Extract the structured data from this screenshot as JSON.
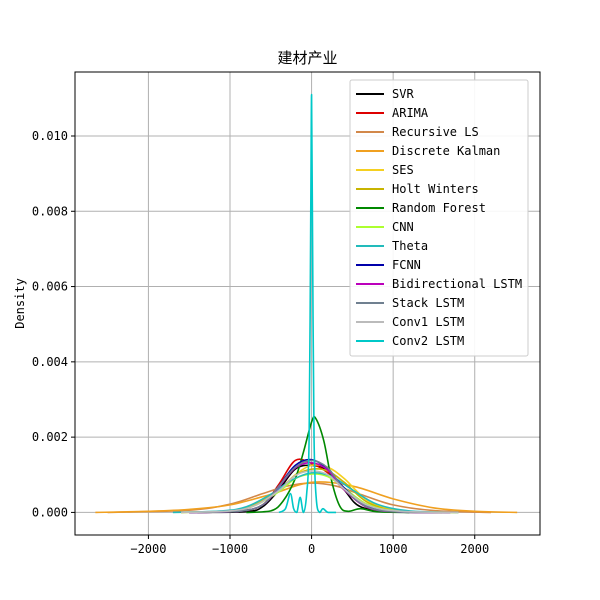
{
  "chart_data": {
    "type": "line",
    "title": "建材产业",
    "xlabel": "",
    "ylabel": "Density",
    "xlim": [
      -2900,
      2800
    ],
    "ylim": [
      -0.0006,
      0.0117
    ],
    "xticks": [
      -2000,
      -1000,
      0,
      1000,
      2000
    ],
    "xtick_labels": [
      "−2000",
      "−1000",
      "0",
      "1000",
      "2000"
    ],
    "yticks": [
      0,
      0.002,
      0.004,
      0.006,
      0.008,
      0.01
    ],
    "ytick_labels": [
      "0.000",
      "0.002",
      "0.004",
      "0.006",
      "0.008",
      "0.010"
    ],
    "grid": true,
    "legend_position": "top-right",
    "series": [
      {
        "name": "SVR",
        "color": "#000000",
        "x": [
          -1400,
          -800,
          -600,
          -400,
          -200,
          0,
          200,
          400,
          600,
          1000,
          1600
        ],
        "y": [
          0,
          2e-05,
          0.00015,
          0.0006,
          0.00115,
          0.00125,
          0.0011,
          0.0006,
          0.00015,
          1e-05,
          0
        ]
      },
      {
        "name": "ARIMA",
        "color": "#dd0000",
        "x": [
          -1500,
          -900,
          -600,
          -400,
          -200,
          0,
          200,
          400,
          700,
          1100,
          1700
        ],
        "y": [
          0,
          3e-05,
          0.0002,
          0.00075,
          0.00138,
          0.0013,
          0.00105,
          0.0006,
          0.00012,
          1e-05,
          0
        ]
      },
      {
        "name": "Recursive LS",
        "color": "#d2884a",
        "x": [
          -2500,
          -1500,
          -1000,
          -600,
          -300,
          0,
          300,
          600,
          1000,
          1500,
          2200
        ],
        "y": [
          0,
          6e-05,
          0.00022,
          0.0005,
          0.0007,
          0.00078,
          0.0007,
          0.00048,
          0.0002,
          5e-05,
          0
        ]
      },
      {
        "name": "Discrete Kalman",
        "color": "#f0a020",
        "x": [
          -2650,
          -2000,
          -1500,
          -1000,
          -500,
          0,
          500,
          1000,
          1500,
          2000,
          2520
        ],
        "y": [
          0,
          3e-05,
          8e-05,
          0.0002,
          0.00048,
          0.0008,
          0.0007,
          0.00036,
          0.00012,
          3e-05,
          0
        ]
      },
      {
        "name": "SES",
        "color": "#f5d020",
        "x": [
          -1600,
          -1000,
          -700,
          -400,
          -200,
          0,
          200,
          400,
          700,
          1100,
          1800
        ],
        "y": [
          0,
          4e-05,
          0.00018,
          0.0006,
          0.001,
          0.00125,
          0.0012,
          0.0009,
          0.0003,
          4e-05,
          0
        ]
      },
      {
        "name": "Holt Winters",
        "color": "#c8b400",
        "x": [
          -1600,
          -1000,
          -700,
          -400,
          -200,
          0,
          200,
          400,
          700,
          1100,
          1800
        ],
        "y": [
          0,
          4e-05,
          0.0002,
          0.0006,
          0.00098,
          0.00115,
          0.0011,
          0.0008,
          0.00025,
          3e-05,
          0
        ]
      },
      {
        "name": "Random Forest",
        "color": "#008800",
        "x": [
          -800,
          -500,
          -350,
          -200,
          -100,
          0,
          50,
          150,
          250,
          350,
          450,
          600,
          800,
          1200
        ],
        "y": [
          0,
          4e-05,
          0.0003,
          0.0009,
          0.0016,
          0.0024,
          0.0025,
          0.0019,
          0.0008,
          0.00015,
          3e-05,
          0.0001,
          2e-05,
          0
        ]
      },
      {
        "name": "CNN",
        "color": "#adff2f",
        "x": [
          -1600,
          -1000,
          -700,
          -400,
          -200,
          0,
          200,
          400,
          700,
          1100,
          1800
        ],
        "y": [
          0,
          4e-05,
          0.00018,
          0.00055,
          0.0009,
          0.00102,
          0.00095,
          0.00065,
          0.0002,
          3e-05,
          0
        ]
      },
      {
        "name": "Theta",
        "color": "#22bbbb",
        "x": [
          -1700,
          -1100,
          -800,
          -500,
          -250,
          0,
          250,
          500,
          800,
          1200,
          1800
        ],
        "y": [
          0,
          4e-05,
          0.00015,
          0.00048,
          0.00085,
          0.00105,
          0.00095,
          0.0006,
          0.00022,
          4e-05,
          0
        ]
      },
      {
        "name": "FCNN",
        "color": "#0000aa",
        "x": [
          -1500,
          -900,
          -600,
          -400,
          -200,
          0,
          200,
          400,
          700,
          1100,
          1700
        ],
        "y": [
          0,
          3e-05,
          0.0002,
          0.0007,
          0.00125,
          0.0014,
          0.00115,
          0.00065,
          0.00015,
          1e-05,
          0
        ]
      },
      {
        "name": "Bidirectional LSTM",
        "color": "#bb00bb",
        "x": [
          -1500,
          -900,
          -600,
          -400,
          -200,
          0,
          200,
          400,
          700,
          1100,
          1700
        ],
        "y": [
          0,
          3e-05,
          0.0002,
          0.00068,
          0.00118,
          0.00132,
          0.00112,
          0.0006,
          0.00012,
          1e-05,
          0
        ]
      },
      {
        "name": "Stack LSTM",
        "color": "#708090",
        "x": [
          -1500,
          -900,
          -600,
          -400,
          -200,
          0,
          200,
          400,
          700,
          1100,
          1700
        ],
        "y": [
          0,
          3e-05,
          0.0002,
          0.0007,
          0.0012,
          0.00138,
          0.00118,
          0.00062,
          0.00013,
          1e-05,
          0
        ]
      },
      {
        "name": "Conv1 LSTM",
        "color": "#bbbbbb",
        "x": [
          -1600,
          -1000,
          -700,
          -400,
          -200,
          0,
          200,
          400,
          700,
          1100,
          1800
        ],
        "y": [
          0,
          4e-05,
          0.00018,
          0.00058,
          0.00098,
          0.0011,
          0.001,
          0.00062,
          0.00018,
          3e-05,
          0
        ]
      },
      {
        "name": "Conv2 LSTM",
        "color": "#00c8c8",
        "x": [
          -400,
          -320,
          -260,
          -220,
          -180,
          -140,
          -100,
          -60,
          -30,
          -10,
          0,
          10,
          30,
          60,
          100,
          140,
          200,
          300
        ],
        "y": [
          0,
          0.0001,
          0.0005,
          0.0001,
          0.0,
          0.0004,
          0.0,
          0.0005,
          0.002,
          0.008,
          0.0111,
          0.008,
          0.002,
          0.0003,
          0.0,
          0.0001,
          0.0,
          0
        ]
      }
    ]
  }
}
